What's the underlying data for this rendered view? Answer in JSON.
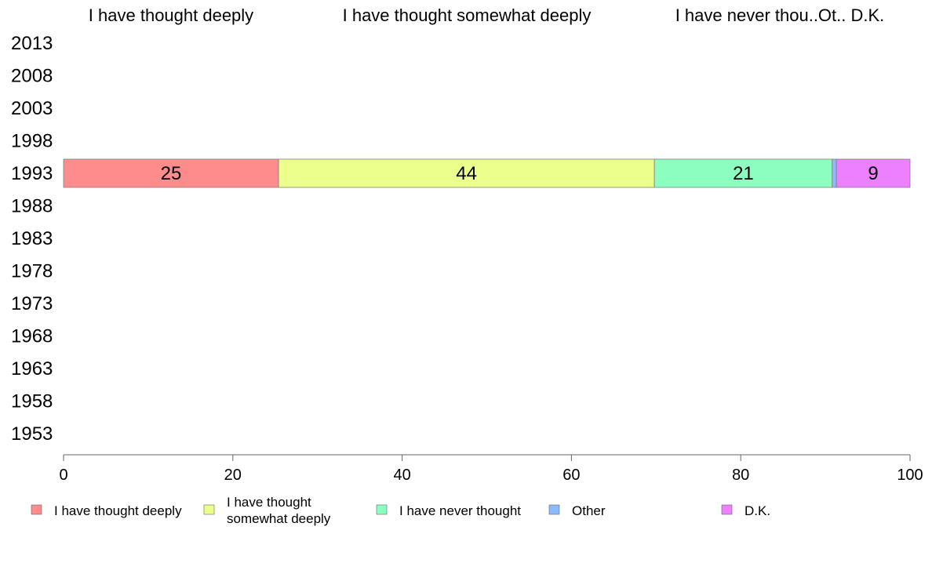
{
  "chart_data": {
    "type": "bar",
    "orientation": "horizontal",
    "stacked": true,
    "title": "",
    "xlabel": "",
    "ylabel": "",
    "xlim": [
      0,
      100
    ],
    "x_ticks": [
      0,
      20,
      40,
      60,
      80,
      100
    ],
    "categories": [
      "2013",
      "2008",
      "2003",
      "1998",
      "1993",
      "1988",
      "1983",
      "1978",
      "1973",
      "1968",
      "1963",
      "1958",
      "1953"
    ],
    "top_labels": [
      "I have thought deeply",
      "I have thought somewhat deeply",
      "I have never thou..Ot.. D.K."
    ],
    "series": [
      {
        "name": "I have thought deeply",
        "legend_lines": [
          "I have thought deeply"
        ],
        "color": "#ff8c8c",
        "values": [
          null,
          null,
          null,
          null,
          25.4,
          null,
          null,
          null,
          null,
          null,
          null,
          null,
          null
        ],
        "labels": [
          "",
          "",
          "",
          "",
          "25",
          "",
          "",
          "",
          "",
          "",
          "",
          "",
          ""
        ]
      },
      {
        "name": "I have thought somewhat deeply",
        "legend_lines": [
          "I have thought",
          "somewhat deeply"
        ],
        "color": "#ecff8c",
        "values": [
          null,
          null,
          null,
          null,
          44.4,
          null,
          null,
          null,
          null,
          null,
          null,
          null,
          null
        ],
        "labels": [
          "",
          "",
          "",
          "",
          "44",
          "",
          "",
          "",
          "",
          "",
          "",
          "",
          ""
        ]
      },
      {
        "name": "I have never thought",
        "legend_lines": [
          "I have never thought"
        ],
        "color": "#8cffc0",
        "values": [
          null,
          null,
          null,
          null,
          21.0,
          null,
          null,
          null,
          null,
          null,
          null,
          null,
          null
        ],
        "labels": [
          "",
          "",
          "",
          "",
          "21",
          "",
          "",
          "",
          "",
          "",
          "",
          "",
          ""
        ]
      },
      {
        "name": "Other",
        "legend_lines": [
          "Other"
        ],
        "color": "#8cbaff",
        "values": [
          null,
          null,
          null,
          null,
          0.5,
          null,
          null,
          null,
          null,
          null,
          null,
          null,
          null
        ],
        "labels": [
          "",
          "",
          "",
          "",
          "",
          "",
          "",
          "",
          "",
          "",
          "",
          "",
          ""
        ]
      },
      {
        "name": "D.K.",
        "legend_lines": [
          "D.K."
        ],
        "color": "#ec80ff",
        "values": [
          null,
          null,
          null,
          null,
          8.7,
          null,
          null,
          null,
          null,
          null,
          null,
          null,
          null
        ],
        "labels": [
          "",
          "",
          "",
          "",
          "9",
          "",
          "",
          "",
          "",
          "",
          "",
          "",
          ""
        ]
      }
    ],
    "grid": false,
    "legend_position": "bottom"
  }
}
